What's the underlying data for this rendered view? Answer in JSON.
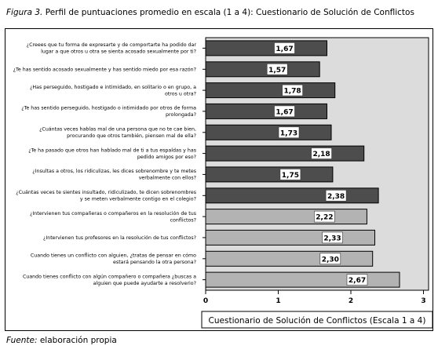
{
  "caption": {
    "label": "Figura 3.",
    "text": "Perfil de puntuaciones promedio en escala (1 a 4): Cuestionario de Solución de Conflictos"
  },
  "source": {
    "label": "Fuente:",
    "text": "elaboración propia"
  },
  "colors": {
    "plot_bg": "#dcdcdc",
    "bar_dark": "#4d4d4d",
    "bar_light": "#b3b3b3",
    "label_box": "#ffffff"
  },
  "chart_data": {
    "type": "bar",
    "orientation": "horizontal",
    "xlabel": "Cuestionario de Solución de Conflictos (Escala 1 a 4)",
    "xlim": [
      0,
      3
    ],
    "xticks": [
      "0",
      "1",
      "2",
      "3"
    ],
    "grid": false,
    "categories": [
      [
        "¿Creees que tu forma de expresarte y de comportarte ha podido dar",
        "lugar a que otros u otra se sienta acosado sexualmente por ti?"
      ],
      [
        "¿Te has sentido acosado sexualmente y has sentido miedo por esa razón?"
      ],
      [
        "¿Has perseguido, hostigado e intimidado, en solitario o en grupo, a",
        "otros u otra?"
      ],
      [
        "¿Te has sentido perseguido, hostigado o intimidado por otros de forma",
        "prolongada?"
      ],
      [
        "¿Cuántas veces hablas mal de una persona que no te cae bien,",
        "procurando que otros también, piensen mal de ella?"
      ],
      [
        "¿Te ha pasado que otros han hablado mal de ti a tus espaldas y has",
        "pedido amigos por eso?"
      ],
      [
        "¿Insultas a otros, los ridiculizas, les dices sobrenombre y te metes",
        "verbalmente con ellos?"
      ],
      [
        "¿Cuántas veces te sientes insultado, ridiculizado, te dicen sobrenombres",
        "y se meten verbalmente contigo en el colegio?"
      ],
      [
        "¿Intervienen tus compañeras o compañeros en la resolución de tus",
        "conflictos?"
      ],
      [
        "¿Intervienen tus profesores en la resolución de tus conflictos?"
      ],
      [
        "Cuando tienes un conflicto con alguien, ¿tratas de pensar en cómo",
        "estará pensando la otra persona?"
      ],
      [
        "Cuando tienes conflicto con algún compañero o compañera ¿buscas a",
        "alguien que puede ayudarte a resolverio?"
      ]
    ],
    "values": [
      1.67,
      1.57,
      1.78,
      1.67,
      1.73,
      2.18,
      1.75,
      2.38,
      2.22,
      2.33,
      2.3,
      2.67
    ],
    "value_labels": [
      "1,67",
      "1,57",
      "1,78",
      "1,67",
      "1,73",
      "2,18",
      "1,75",
      "2,38",
      "2,22",
      "2,33",
      "2,30",
      "2,67"
    ],
    "bar_shade": [
      "dark",
      "dark",
      "dark",
      "dark",
      "dark",
      "dark",
      "dark",
      "dark",
      "light",
      "light",
      "light",
      "light"
    ]
  }
}
